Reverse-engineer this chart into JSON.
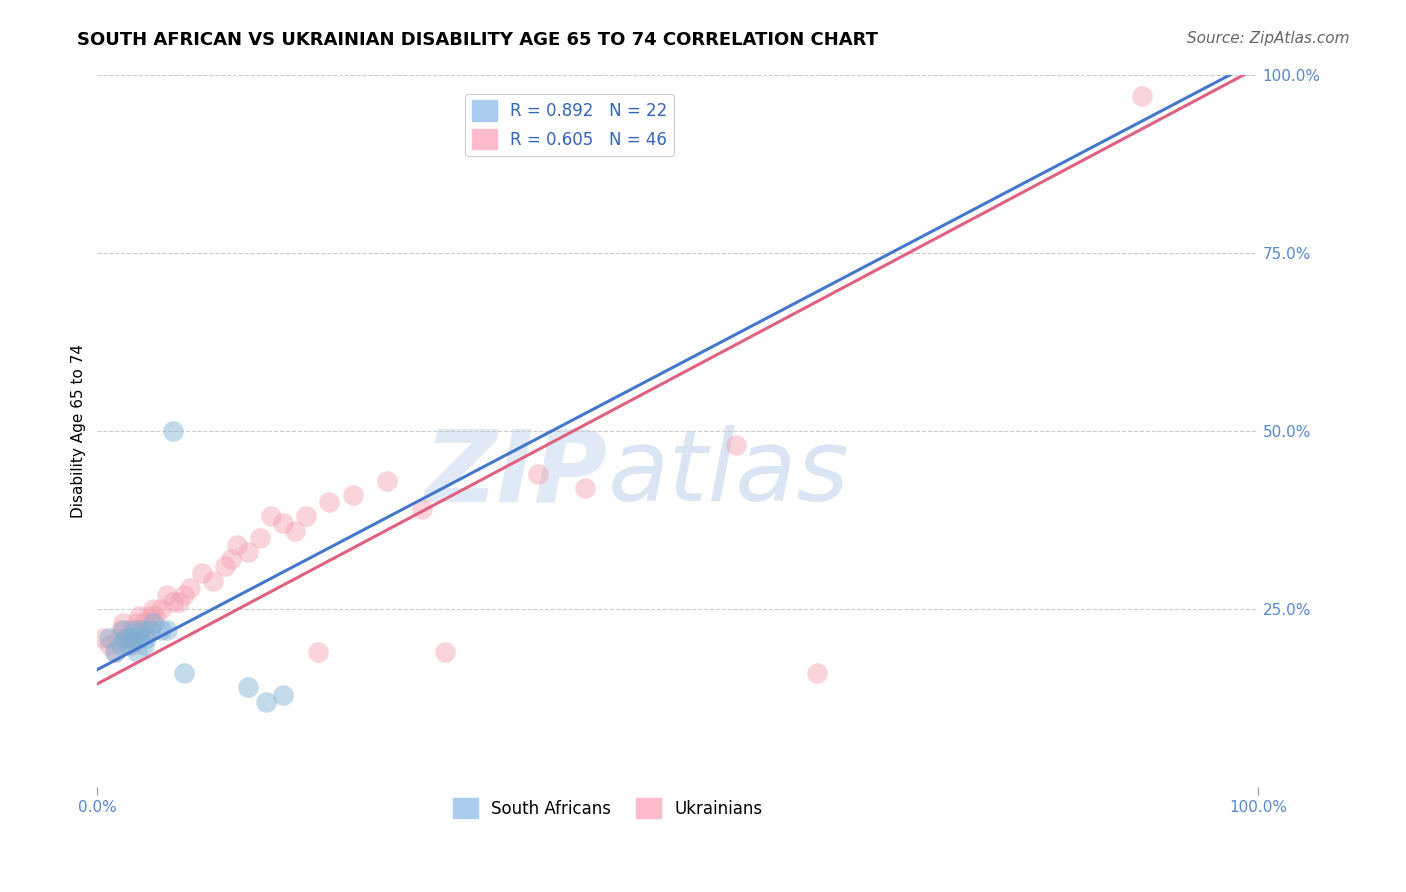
{
  "title": "SOUTH AFRICAN VS UKRAINIAN DISABILITY AGE 65 TO 74 CORRELATION CHART",
  "source": "Source: ZipAtlas.com",
  "ylabel": "Disability Age 65 to 74",
  "xlim": [
    0.0,
    1.0
  ],
  "ylim": [
    0.0,
    1.0
  ],
  "grid_color": "#cccccc",
  "background_color": "#ffffff",
  "blue_color": "#7bafd4",
  "pink_color": "#f4a0b0",
  "blue_R": 0.892,
  "blue_N": 22,
  "pink_R": 0.605,
  "pink_N": 46,
  "blue_line_x": [
    0.0,
    1.0
  ],
  "blue_line_y": [
    0.165,
    1.02
  ],
  "pink_line_x": [
    0.0,
    1.0
  ],
  "pink_line_y": [
    0.145,
    1.01
  ],
  "sa_x": [
    0.01,
    0.015,
    0.02,
    0.022,
    0.025,
    0.027,
    0.03,
    0.032,
    0.034,
    0.036,
    0.038,
    0.04,
    0.042,
    0.045,
    0.048,
    0.055,
    0.06,
    0.065,
    0.075,
    0.13,
    0.145,
    0.16
  ],
  "sa_y": [
    0.21,
    0.19,
    0.2,
    0.22,
    0.21,
    0.2,
    0.21,
    0.22,
    0.19,
    0.21,
    0.22,
    0.2,
    0.21,
    0.22,
    0.23,
    0.22,
    0.22,
    0.5,
    0.16,
    0.14,
    0.12,
    0.13
  ],
  "uk_x": [
    0.005,
    0.01,
    0.015,
    0.018,
    0.02,
    0.022,
    0.025,
    0.028,
    0.03,
    0.032,
    0.034,
    0.036,
    0.038,
    0.04,
    0.042,
    0.045,
    0.048,
    0.05,
    0.055,
    0.06,
    0.065,
    0.07,
    0.075,
    0.08,
    0.09,
    0.1,
    0.11,
    0.115,
    0.12,
    0.13,
    0.14,
    0.15,
    0.16,
    0.17,
    0.18,
    0.19,
    0.2,
    0.22,
    0.25,
    0.28,
    0.3,
    0.38,
    0.42,
    0.55,
    0.62,
    0.9
  ],
  "uk_y": [
    0.21,
    0.2,
    0.19,
    0.21,
    0.22,
    0.23,
    0.21,
    0.22,
    0.2,
    0.21,
    0.23,
    0.24,
    0.22,
    0.23,
    0.22,
    0.24,
    0.25,
    0.24,
    0.25,
    0.27,
    0.26,
    0.26,
    0.27,
    0.28,
    0.3,
    0.29,
    0.31,
    0.32,
    0.34,
    0.33,
    0.35,
    0.38,
    0.37,
    0.36,
    0.38,
    0.19,
    0.4,
    0.41,
    0.43,
    0.39,
    0.19,
    0.44,
    0.42,
    0.48,
    0.16,
    0.97
  ],
  "watermark_zip": "ZIP",
  "watermark_atlas": "atlas",
  "title_fontsize": 13,
  "axis_label_fontsize": 11,
  "tick_fontsize": 11,
  "legend_fontsize": 12,
  "source_fontsize": 11,
  "tick_color": "#5588cc"
}
